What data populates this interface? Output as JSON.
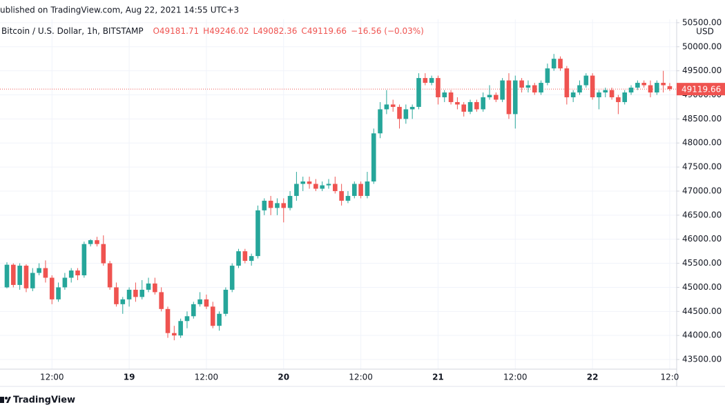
{
  "header": {
    "published": "ublished on TradingView.com, Aug 22, 2021 14:55 UTC+3",
    "symbol": "Bitcoin / U.S. Dollar, 1h, BITSTAMP",
    "change": "−16.56 (−0.03%)"
  },
  "footer": {
    "brand": "TradingView"
  },
  "chart_data": {
    "type": "candlestick",
    "ohlc_labels": [
      "O",
      "H",
      "L",
      "C"
    ],
    "currency": "USD",
    "up_color": "#26a69a",
    "down_color": "#ef5350",
    "grid": true,
    "last_price_line": true,
    "categories": [
      null,
      null,
      null,
      null,
      null,
      null,
      null,
      "12:00",
      null,
      null,
      null,
      null,
      null,
      null,
      null,
      null,
      null,
      null,
      null,
      "19",
      null,
      null,
      null,
      null,
      null,
      null,
      null,
      null,
      null,
      null,
      null,
      "12:00",
      null,
      null,
      null,
      null,
      null,
      null,
      null,
      null,
      null,
      null,
      null,
      "20",
      null,
      null,
      null,
      null,
      null,
      null,
      null,
      null,
      null,
      null,
      null,
      "12:00",
      null,
      null,
      null,
      null,
      null,
      null,
      null,
      null,
      null,
      null,
      null,
      "21",
      null,
      null,
      null,
      null,
      null,
      null,
      null,
      null,
      null,
      null,
      null,
      "12:00",
      null,
      null,
      null,
      null,
      null,
      null,
      null,
      null,
      null,
      null,
      null,
      "22",
      null,
      null,
      null,
      null,
      null,
      null,
      null,
      null,
      null,
      null,
      null,
      "12:0"
    ],
    "open": [
      45000,
      45470,
      45050,
      45450,
      44980,
      45300,
      45400,
      45200,
      44750,
      45000,
      45200,
      45350,
      45250,
      45900,
      45980,
      45900,
      45500,
      45000,
      44650,
      44750,
      44950,
      44800,
      44950,
      45080,
      44900,
      44550,
      44050,
      44000,
      44300,
      44400,
      44650,
      44750,
      44600,
      44200,
      44450,
      44950,
      45450,
      45750,
      45550,
      45650,
      46600,
      46800,
      46650,
      46750,
      46650,
      46900,
      47150,
      47200,
      47150,
      47050,
      47120,
      47150,
      47000,
      46800,
      46900,
      47150,
      46900,
      47200,
      48200,
      48700,
      48800,
      48750,
      48500,
      48700,
      48750,
      49350,
      49250,
      49350,
      48950,
      49050,
      48850,
      48800,
      48650,
      48850,
      48700,
      48950,
      49000,
      48900,
      49300,
      48600,
      49300,
      49150,
      49200,
      49050,
      49250,
      49550,
      49750,
      49550,
      48950,
      49050,
      49200,
      49400,
      48950,
      49050,
      49100,
      48950,
      48850,
      49050,
      49150,
      49250,
      49200,
      49050,
      49250,
      49181.71
    ],
    "high": [
      45520,
      45500,
      45500,
      45480,
      45400,
      45500,
      45560,
      45250,
      45100,
      45300,
      45400,
      45400,
      45950,
      46000,
      46050,
      46080,
      45550,
      45100,
      44800,
      45000,
      45100,
      45150,
      45200,
      45200,
      45000,
      44600,
      44200,
      44350,
      44500,
      44700,
      44900,
      44850,
      44700,
      44500,
      45000,
      45500,
      45800,
      45800,
      45700,
      46700,
      46850,
      46900,
      46850,
      46850,
      47000,
      47400,
      47300,
      47300,
      47250,
      47200,
      47250,
      47300,
      47150,
      47000,
      47200,
      47200,
      47400,
      48300,
      48850,
      49100,
      48900,
      48800,
      48800,
      48800,
      49450,
      49450,
      49400,
      49400,
      49100,
      49100,
      48950,
      48850,
      48900,
      48900,
      49050,
      49200,
      49050,
      49350,
      49450,
      49400,
      49350,
      49300,
      49250,
      49300,
      49650,
      49850,
      49800,
      49600,
      49100,
      49300,
      49450,
      49450,
      49100,
      49150,
      49150,
      49000,
      49100,
      49200,
      49300,
      49300,
      49300,
      49300,
      49500,
      49246.02
    ],
    "low": [
      44980,
      45000,
      44950,
      44900,
      44920,
      45250,
      45100,
      44650,
      44700,
      44950,
      45100,
      45150,
      45200,
      45850,
      45850,
      45450,
      44950,
      44600,
      44450,
      44600,
      44700,
      44750,
      44900,
      44850,
      44500,
      43950,
      43900,
      43950,
      44150,
      44350,
      44600,
      44550,
      44150,
      44100,
      44400,
      44900,
      45400,
      45500,
      45450,
      45600,
      46500,
      46500,
      46500,
      46350,
      46600,
      46800,
      47000,
      47050,
      47000,
      47000,
      47050,
      46950,
      46700,
      46750,
      46850,
      46850,
      46850,
      47150,
      48100,
      48600,
      48650,
      48300,
      48400,
      48500,
      48700,
      49200,
      49200,
      48800,
      48850,
      48800,
      48700,
      48550,
      48600,
      48650,
      48650,
      48900,
      48850,
      48850,
      48500,
      48300,
      49050,
      49050,
      49000,
      49000,
      49200,
      49500,
      49500,
      48800,
      48850,
      49000,
      49150,
      48900,
      48700,
      48950,
      48900,
      48600,
      48800,
      49000,
      49100,
      49150,
      48950,
      49000,
      49050,
      49082.36
    ],
    "close": [
      45470,
      45050,
      45450,
      44980,
      45300,
      45400,
      45200,
      44750,
      45000,
      45200,
      45350,
      45250,
      45900,
      45980,
      45900,
      45500,
      45000,
      44650,
      44750,
      44950,
      44800,
      44950,
      45080,
      44900,
      44550,
      44050,
      44000,
      44300,
      44400,
      44650,
      44750,
      44600,
      44200,
      44450,
      44950,
      45450,
      45750,
      45550,
      45650,
      46600,
      46800,
      46650,
      46750,
      46650,
      46900,
      47150,
      47200,
      47150,
      47050,
      47120,
      47150,
      47000,
      46800,
      46900,
      47150,
      46900,
      47200,
      48200,
      48700,
      48800,
      48750,
      48500,
      48700,
      48750,
      49350,
      49250,
      49350,
      48950,
      49050,
      48850,
      48800,
      48650,
      48850,
      48700,
      48950,
      49000,
      48900,
      49300,
      48600,
      49300,
      49150,
      49200,
      49050,
      49250,
      49550,
      49750,
      49550,
      48950,
      49050,
      49200,
      49400,
      48950,
      49050,
      49100,
      48950,
      48850,
      49050,
      49150,
      49250,
      49200,
      49050,
      49250,
      49200,
      49119.66
    ],
    "ylim": [
      43300,
      50570
    ],
    "yticks": [
      {
        "value": 43500,
        "label": "43500.00"
      },
      {
        "value": 44000,
        "label": "44000.00"
      },
      {
        "value": 44500,
        "label": "44500.00"
      },
      {
        "value": 45000,
        "label": "45000.00"
      },
      {
        "value": 45500,
        "label": "45500.00"
      },
      {
        "value": 46000,
        "label": "46000.00"
      },
      {
        "value": 46500,
        "label": "46500.00"
      },
      {
        "value": 47000,
        "label": "47000.00"
      },
      {
        "value": 47500,
        "label": "47500.00"
      },
      {
        "value": 48000,
        "label": "48000.00"
      },
      {
        "value": 48500,
        "label": "48500.00"
      },
      {
        "value": 49000,
        "label": "49000.00"
      },
      {
        "value": 49500,
        "label": "49500.00"
      },
      {
        "value": 50000,
        "label": "50000.00"
      },
      {
        "value": 50500,
        "label": "50500.00"
      }
    ]
  }
}
